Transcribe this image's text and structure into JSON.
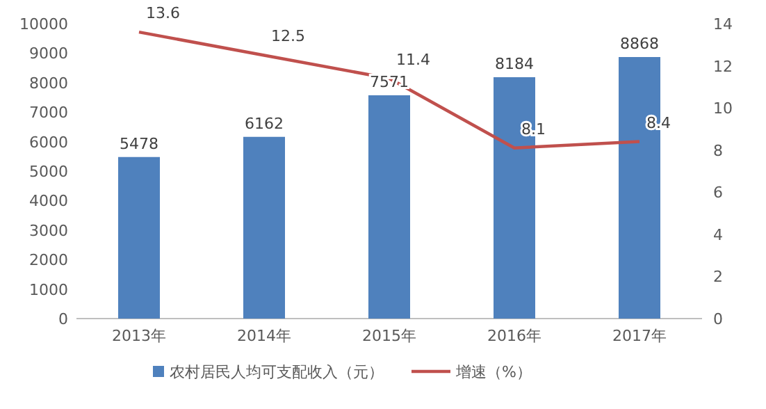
{
  "chart_data": {
    "type": "bar",
    "categories": [
      "2013年",
      "2014年",
      "2015年",
      "2016年",
      "2017年"
    ],
    "series": [
      {
        "name": "农村居民人均可支配收入（元）",
        "color": "#4f81bd",
        "values": [
          5478,
          6162,
          7571,
          8184,
          8868
        ]
      },
      {
        "name": "增速（%）",
        "type": "line",
        "axis": "y2",
        "color": "#c0504d",
        "values": [
          13.6,
          12.5,
          11.4,
          8.1,
          8.4
        ]
      }
    ],
    "ylim": [
      0,
      10000
    ],
    "yticks": [
      0,
      1000,
      2000,
      3000,
      4000,
      5000,
      6000,
      7000,
      8000,
      9000,
      10000
    ],
    "y2lim": [
      0,
      14
    ],
    "y2ticks": [
      0,
      2,
      4,
      6,
      8,
      10,
      12,
      14
    ],
    "data_labels": true,
    "legend": "bottom",
    "grid": false
  }
}
